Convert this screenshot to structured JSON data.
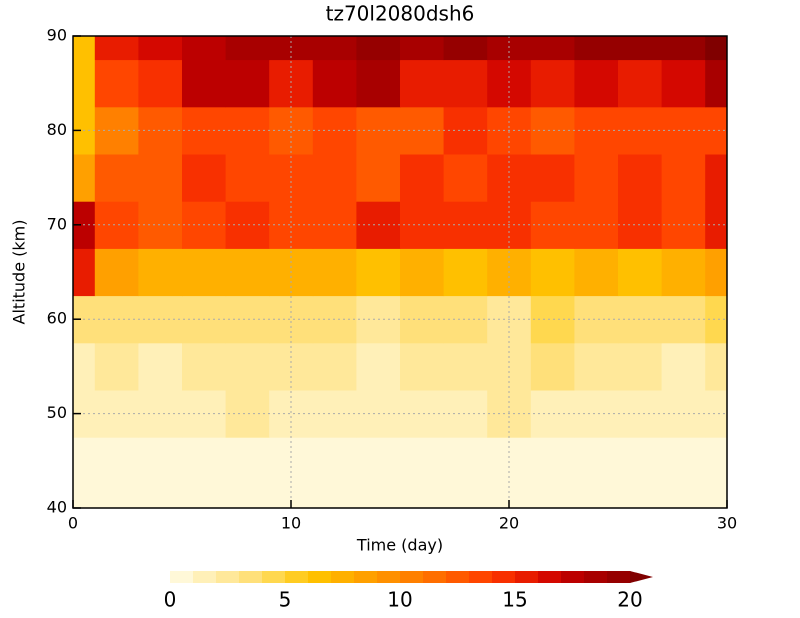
{
  "chart_data": {
    "type": "heatmap",
    "title": "tz70l2080dsh6",
    "x_label": "Time (day)",
    "y_label": "Altitude (km)",
    "x": [
      0,
      2,
      4,
      6,
      8,
      10,
      12,
      14,
      16,
      18,
      20,
      22,
      24,
      26,
      28,
      30
    ],
    "y": [
      40,
      45,
      50,
      55,
      60,
      65,
      70,
      75,
      80,
      85,
      90
    ],
    "values": [
      [
        0,
        0,
        0,
        0,
        0,
        0,
        0,
        0,
        0,
        0,
        0,
        0,
        0,
        0,
        0,
        0
      ],
      [
        0,
        0,
        0,
        0,
        0,
        0,
        0,
        0,
        0,
        0,
        0,
        0,
        0,
        0,
        0,
        0
      ],
      [
        1,
        1,
        1,
        1,
        2,
        1,
        1,
        1,
        1,
        1,
        2,
        1,
        1,
        1,
        1,
        1
      ],
      [
        1,
        2,
        1,
        2,
        2,
        2,
        2,
        1,
        2,
        2,
        2,
        3,
        2,
        2,
        1,
        2
      ],
      [
        3,
        3,
        3,
        3,
        3,
        3,
        3,
        2,
        3,
        3,
        2,
        4,
        3,
        3,
        3,
        4
      ],
      [
        15,
        8,
        7,
        7,
        7,
        7,
        7,
        6,
        7,
        6,
        7,
        6,
        7,
        6,
        7,
        8
      ],
      [
        17,
        13,
        12,
        13,
        14,
        13,
        13,
        15,
        14,
        14,
        14,
        13,
        13,
        14,
        13,
        15
      ],
      [
        8,
        12,
        12,
        14,
        13,
        13,
        13,
        12,
        14,
        13,
        14,
        14,
        13,
        14,
        13,
        15
      ],
      [
        6,
        10,
        12,
        13,
        13,
        12,
        13,
        12,
        12,
        14,
        13,
        12,
        13,
        13,
        13,
        13
      ],
      [
        6,
        13,
        14,
        17,
        17,
        15,
        17,
        18,
        15,
        15,
        16,
        15,
        16,
        15,
        16,
        18
      ],
      [
        6,
        15,
        16,
        17,
        18,
        18,
        18,
        19,
        18,
        19,
        18,
        18,
        19,
        19,
        19,
        20
      ]
    ],
    "xlim": [
      0,
      30
    ],
    "xticks": [
      0,
      10,
      20,
      30
    ],
    "ylim": [
      40,
      90
    ],
    "yticks": [
      40,
      50,
      60,
      70,
      80,
      90
    ],
    "grid": true,
    "levels": [
      0,
      1,
      2,
      3,
      4,
      5,
      6,
      7,
      8,
      9,
      10,
      11,
      12,
      13,
      14,
      15,
      16,
      17,
      18,
      19,
      20
    ],
    "colors": [
      "#fff8d8",
      "#fff0b8",
      "#ffe89a",
      "#ffe07a",
      "#ffd84f",
      "#ffcc22",
      "#ffc000",
      "#ffb000",
      "#ffa000",
      "#ff9000",
      "#ff8000",
      "#ff6e00",
      "#ff5a00",
      "#ff4600",
      "#f83000",
      "#e81c00",
      "#d40800",
      "#bc0000",
      "#a80000",
      "#960000",
      "#800000"
    ],
    "colorbar_ticks": [
      0,
      5,
      10,
      15,
      20
    ]
  }
}
